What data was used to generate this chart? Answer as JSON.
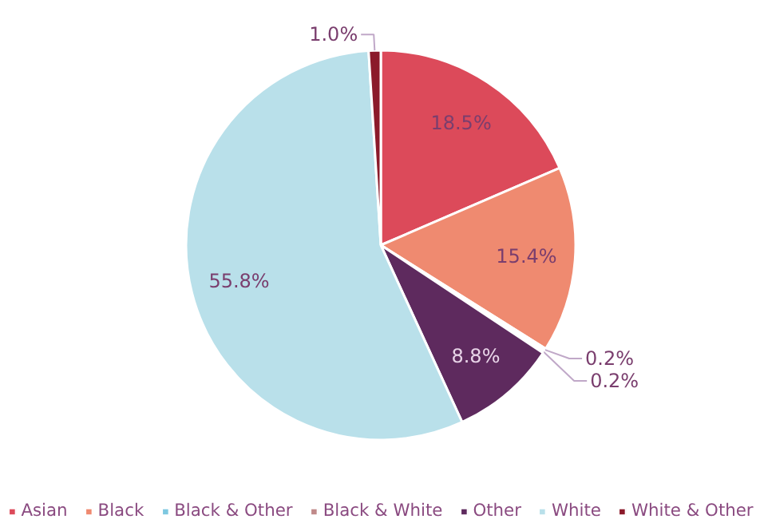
{
  "chart_data": {
    "type": "pie",
    "categories": [
      "Asian",
      "Black",
      "Black & Other",
      "Black & White",
      "Other",
      "White",
      "White & Other"
    ],
    "values": [
      18.5,
      15.4,
      0.2,
      0.2,
      8.8,
      55.8,
      1.0
    ],
    "value_labels": [
      "18.5%",
      "15.4%",
      "0.2%",
      "0.2%",
      "8.8%",
      "55.8%",
      "1.0%"
    ],
    "colors": [
      "#dc4a5a",
      "#ef8a70",
      "#7ec8e0",
      "#c08a8a",
      "#5e2a5e",
      "#b9e0ea",
      "#8b1a2a"
    ],
    "legend": "bottom"
  }
}
